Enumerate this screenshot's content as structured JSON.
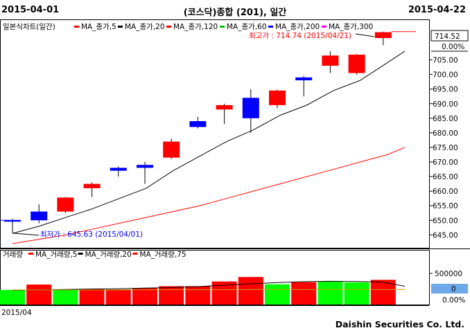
{
  "header": {
    "start_date": "2015-04-01",
    "title": "(코스닥)종합 (201), 일간",
    "end_date": "2015-04-22"
  },
  "price_legend": [
    {
      "label": "일본식차트(일간)",
      "color": "#000000"
    },
    {
      "label": "MA_종가,5",
      "color": "#ff0000"
    },
    {
      "label": "MA_종가,20",
      "color": "#000000"
    },
    {
      "label": "MA_종가,120",
      "color": "#ff0000"
    },
    {
      "label": "MA_종가,60",
      "color": "#00c000"
    },
    {
      "label": "MA_종가,200",
      "color": "#0000ff"
    },
    {
      "label": "MA_종가,300",
      "color": "#ff00ff"
    }
  ],
  "volume_legend": [
    {
      "label": "거래량",
      "color": "#000000"
    },
    {
      "label": "MA_거래량,5",
      "color": "#ff0000"
    },
    {
      "label": "MA_거래량,20",
      "color": "#000000"
    },
    {
      "label": "MA_거래량,75",
      "color": "#ff0000"
    }
  ],
  "annotations": {
    "high": "최고가 : 714.74 (2015/04/21)",
    "low": "최저가 : 645.63 (2015/04/01)"
  },
  "price_axis": {
    "last_price": "714.52",
    "change_pct": "0.00%",
    "ticks": [
      "705.00",
      "700.00",
      "695.00",
      "690.00",
      "685.00",
      "680.00",
      "675.00",
      "670.00",
      "665.00",
      "660.00",
      "655.00",
      "650.00",
      "645.00"
    ]
  },
  "volume_axis": {
    "tick": "500000",
    "last_value": "0",
    "change_pct": "0.00%"
  },
  "x_axis": {
    "label": "2015/04"
  },
  "footer": {
    "company": "Daishin Securities Co. Ltd."
  },
  "colors": {
    "up": "#ff0000",
    "down": "#0000ff",
    "vol_up": "#ff0000",
    "vol_down": "#00ff00",
    "volume_badge": "#6fa8e8"
  },
  "chart_data": {
    "type": "candlestick",
    "ylim": [
      642,
      717
    ],
    "candles": [
      {
        "open": 650.0,
        "high": 650.5,
        "low": 645.6,
        "close": 650.0,
        "dir": "down"
      },
      {
        "open": 653.0,
        "high": 655.5,
        "low": 649.0,
        "close": 650.0,
        "dir": "down"
      },
      {
        "open": 653.0,
        "high": 658.0,
        "low": 652.5,
        "close": 657.8,
        "dir": "up"
      },
      {
        "open": 661.0,
        "high": 663.0,
        "low": 658.0,
        "close": 662.5,
        "dir": "up"
      },
      {
        "open": 668.0,
        "high": 668.5,
        "low": 665.0,
        "close": 667.0,
        "dir": "down"
      },
      {
        "open": 669.0,
        "high": 670.0,
        "low": 662.5,
        "close": 668.0,
        "dir": "down"
      },
      {
        "open": 671.5,
        "high": 678.0,
        "low": 671.0,
        "close": 677.0,
        "dir": "up"
      },
      {
        "open": 684.0,
        "high": 685.5,
        "low": 681.5,
        "close": 682.0,
        "dir": "down"
      },
      {
        "open": 688.0,
        "high": 690.0,
        "low": 683.0,
        "close": 689.5,
        "dir": "up"
      },
      {
        "open": 692.0,
        "high": 695.0,
        "low": 680.0,
        "close": 685.0,
        "dir": "down"
      },
      {
        "open": 689.5,
        "high": 694.8,
        "low": 688.5,
        "close": 694.5,
        "dir": "up"
      },
      {
        "open": 699.0,
        "high": 699.5,
        "low": 692.5,
        "close": 698.0,
        "dir": "down"
      },
      {
        "open": 703.0,
        "high": 708.0,
        "low": 700.5,
        "close": 706.5,
        "dir": "up"
      },
      {
        "open": 700.5,
        "high": 707.0,
        "low": 700.0,
        "close": 706.8,
        "dir": "up"
      },
      {
        "open": 712.5,
        "high": 714.7,
        "low": 710.0,
        "close": 714.5,
        "dir": "up"
      }
    ],
    "ma5": [
      645.5,
      648.0,
      651.0,
      654.0,
      657.5,
      661.0,
      667.0,
      672.0,
      677.0,
      681.0,
      686.0,
      689.5,
      694.5,
      698.0,
      704.0,
      708.0
    ],
    "ma20": [
      642.0,
      643.5,
      645.0,
      647.0,
      649.0,
      651.0,
      653.0,
      655.0,
      657.5,
      660.0,
      662.5,
      665.0,
      667.5,
      670.0,
      672.5,
      675.0
    ],
    "volume": {
      "bars": [
        {
          "value": 0.62,
          "dir": "down"
        },
        {
          "value": 0.85,
          "dir": "up"
        },
        {
          "value": 0.65,
          "dir": "down"
        },
        {
          "value": 0.66,
          "dir": "up"
        },
        {
          "value": 0.64,
          "dir": "up"
        },
        {
          "value": 0.7,
          "dir": "up"
        },
        {
          "value": 0.78,
          "dir": "up"
        },
        {
          "value": 0.78,
          "dir": "up"
        },
        {
          "value": 0.98,
          "dir": "up"
        },
        {
          "value": 1.17,
          "dir": "up"
        },
        {
          "value": 0.86,
          "dir": "down"
        },
        {
          "value": 0.95,
          "dir": "up"
        },
        {
          "value": 0.97,
          "dir": "down"
        },
        {
          "value": 0.94,
          "dir": "down"
        },
        {
          "value": 1.05,
          "dir": "up"
        }
      ],
      "ma5": [
        0.61,
        0.62,
        0.64,
        0.66,
        0.67,
        0.7,
        0.72,
        0.76,
        0.82,
        0.88,
        0.93,
        0.97,
        0.99,
        0.98,
        0.96,
        0.78
      ],
      "ma20": [
        0.62,
        0.62,
        0.62,
        0.62,
        0.62,
        0.63,
        0.63,
        0.63,
        0.63,
        0.64,
        0.64,
        0.64,
        0.64,
        0.64,
        0.64,
        0.64
      ]
    }
  }
}
